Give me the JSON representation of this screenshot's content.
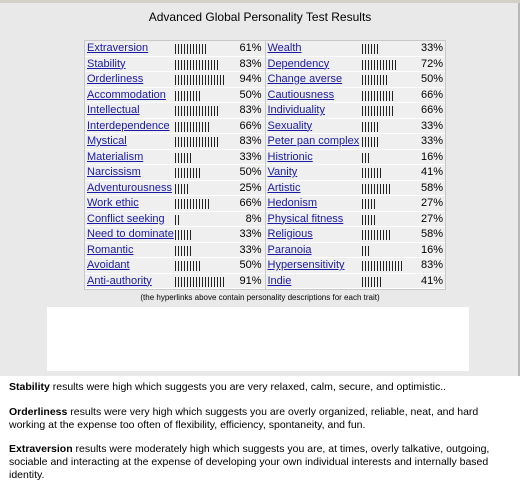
{
  "title": "Advanced Global Personality Test Results",
  "traits_left": [
    {
      "label": "Extraversion",
      "percent": 61,
      "display": "61%"
    },
    {
      "label": "Stability",
      "percent": 83,
      "display": "83%"
    },
    {
      "label": "Orderliness",
      "percent": 94,
      "display": "94%"
    },
    {
      "label": "Accommodation",
      "percent": 50,
      "display": "50%"
    },
    {
      "label": "Intellectual",
      "percent": 83,
      "display": "83%"
    },
    {
      "label": "Interdependence",
      "percent": 66,
      "display": "66%"
    },
    {
      "label": "Mystical",
      "percent": 83,
      "display": "83%"
    },
    {
      "label": "Materialism",
      "percent": 33,
      "display": "33%"
    },
    {
      "label": "Narcissism",
      "percent": 50,
      "display": "50%"
    },
    {
      "label": "Adventurousness",
      "percent": 25,
      "display": "25%"
    },
    {
      "label": "Work ethic",
      "percent": 66,
      "display": "66%"
    },
    {
      "label": "Conflict seeking",
      "percent": 8,
      "display": "8%"
    },
    {
      "label": "Need to dominate",
      "percent": 33,
      "display": "33%"
    },
    {
      "label": "Romantic",
      "percent": 33,
      "display": "33%"
    },
    {
      "label": "Avoidant",
      "percent": 50,
      "display": "50%"
    },
    {
      "label": "Anti-authority",
      "percent": 91,
      "display": "91%"
    }
  ],
  "traits_right": [
    {
      "label": "Wealth",
      "percent": 33,
      "display": "33%"
    },
    {
      "label": "Dependency",
      "percent": 72,
      "display": "72%"
    },
    {
      "label": "Change averse",
      "percent": 50,
      "display": "50%"
    },
    {
      "label": "Cautiousness",
      "percent": 66,
      "display": "66%"
    },
    {
      "label": "Individuality",
      "percent": 66,
      "display": "66%"
    },
    {
      "label": "Sexuality",
      "percent": 33,
      "display": "33%"
    },
    {
      "label": "Peter pan complex",
      "percent": 33,
      "display": "33%"
    },
    {
      "label": "Histrionic",
      "percent": 16,
      "display": "16%"
    },
    {
      "label": "Vanity",
      "percent": 41,
      "display": "41%"
    },
    {
      "label": "Artistic",
      "percent": 58,
      "display": "58%"
    },
    {
      "label": "Hedonism",
      "percent": 27,
      "display": "27%"
    },
    {
      "label": "Physical fitness",
      "percent": 27,
      "display": "27%"
    },
    {
      "label": "Religious",
      "percent": 58,
      "display": "58%"
    },
    {
      "label": "Paranoia",
      "percent": 16,
      "display": "16%"
    },
    {
      "label": "Hypersensitivity",
      "percent": 83,
      "display": "83%"
    },
    {
      "label": "Indie",
      "percent": 41,
      "display": "41%"
    }
  ],
  "footnote": "(the hyperlinks above contain personality descriptions for each trait)",
  "descriptions": [
    {
      "trait": "Stability",
      "text": " results were high which suggests you are very relaxed, calm, secure, and optimistic.."
    },
    {
      "trait": "Orderliness",
      "text": " results were very high which suggests you are overly organized, reliable, neat, and hard working at the expense too often of flexibility, efficiency, spontaneity, and fun."
    },
    {
      "trait": "Extraversion",
      "text": " results were moderately high which suggests you are, at times, overly talkative, outgoing, sociable and interacting at the expense of developing your own individual interests and internally based identity."
    }
  ],
  "colors": {
    "link": "#1a1aa6",
    "row_bg": "#efefef",
    "page_bg": "#e9e9e9"
  }
}
